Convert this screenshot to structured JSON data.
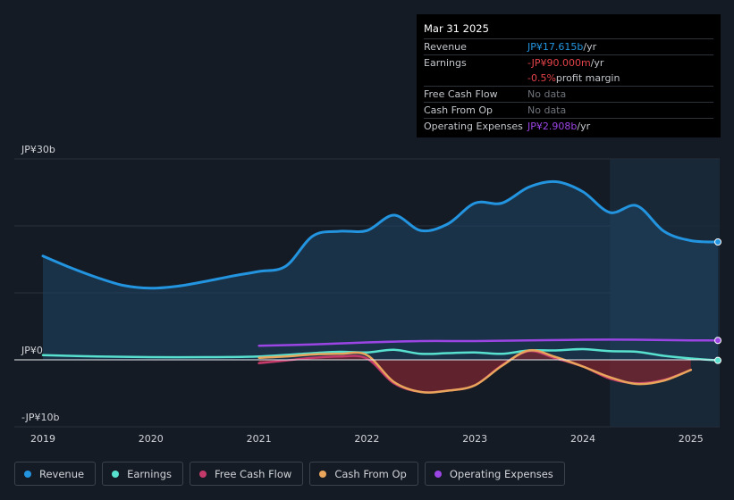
{
  "colors": {
    "revenue": "#2394df",
    "earnings": "#58e1ce",
    "free_cash_flow": "#c43b6b",
    "cash_from_op": "#e8a55b",
    "operating_expenses": "#9b45e5",
    "negative": "#e5434a"
  },
  "tooltip": {
    "date": "Mar 31 2025",
    "rows": [
      {
        "label": "Revenue",
        "value": "JP¥17.615b",
        "unit": " /yr"
      },
      {
        "label": "Earnings",
        "value": "-JP¥90.000m",
        "unit": " /yr"
      },
      {
        "label": "",
        "value": "-0.5%",
        "unit": " profit margin"
      },
      {
        "label": "Free Cash Flow",
        "value": "No data",
        "unit": ""
      },
      {
        "label": "Cash From Op",
        "value": "No data",
        "unit": ""
      },
      {
        "label": "Operating Expenses",
        "value": "JP¥2.908b",
        "unit": " /yr"
      }
    ]
  },
  "legend": [
    {
      "label": "Revenue",
      "color": "#2394df"
    },
    {
      "label": "Earnings",
      "color": "#58e1ce"
    },
    {
      "label": "Free Cash Flow",
      "color": "#c43b6b"
    },
    {
      "label": "Cash From Op",
      "color": "#e8a55b"
    },
    {
      "label": "Operating Expenses",
      "color": "#9b45e5"
    }
  ],
  "chart_data": {
    "type": "line",
    "title": "",
    "xlabel": "",
    "ylabel": "",
    "ylim": [
      -10,
      30
    ],
    "xlim": [
      2019.0,
      2025.25
    ],
    "y_tick_labels": [
      {
        "value": 30,
        "label": "JP¥30b"
      },
      {
        "value": 0,
        "label": "JP¥0"
      },
      {
        "value": -10,
        "label": "-JP¥10b"
      }
    ],
    "gridlines": [
      30,
      20,
      10,
      0,
      -10
    ],
    "x_tick_labels": [
      "2019",
      "2020",
      "2021",
      "2022",
      "2023",
      "2024",
      "2025"
    ],
    "x_tick_values": [
      2019,
      2020,
      2021,
      2022,
      2023,
      2024,
      2025
    ],
    "forecast_start": 2024.25,
    "series": [
      {
        "name": "Revenue",
        "color": "#2394df",
        "fill": true,
        "x": [
          2019.0,
          2019.25,
          2019.5,
          2019.75,
          2020.0,
          2020.25,
          2020.5,
          2020.75,
          2021.0,
          2021.25,
          2021.5,
          2021.75,
          2022.0,
          2022.25,
          2022.5,
          2022.75,
          2023.0,
          2023.25,
          2023.5,
          2023.75,
          2024.0,
          2024.25,
          2024.5,
          2024.75,
          2025.0,
          2025.25
        ],
        "values": [
          15.5,
          13.8,
          12.3,
          11.1,
          10.7,
          11.0,
          11.7,
          12.5,
          13.2,
          14.0,
          18.5,
          19.2,
          19.3,
          21.6,
          19.3,
          20.3,
          23.4,
          23.4,
          25.8,
          26.6,
          25.1,
          22.0,
          23.0,
          19.2,
          17.8,
          17.6
        ]
      },
      {
        "name": "Earnings",
        "color": "#58e1ce",
        "fill": false,
        "x": [
          2019.0,
          2019.5,
          2020.0,
          2020.5,
          2021.0,
          2021.5,
          2021.75,
          2022.0,
          2022.25,
          2022.5,
          2022.75,
          2023.0,
          2023.25,
          2023.5,
          2023.75,
          2024.0,
          2024.25,
          2024.5,
          2024.75,
          2025.0,
          2025.25
        ],
        "values": [
          0.7,
          0.5,
          0.4,
          0.4,
          0.5,
          1.0,
          1.2,
          1.1,
          1.5,
          0.9,
          1.0,
          1.1,
          0.9,
          1.4,
          1.4,
          1.6,
          1.3,
          1.2,
          0.6,
          0.2,
          -0.09
        ]
      },
      {
        "name": "Free Cash Flow",
        "color": "#c43b6b",
        "fill": true,
        "x": [
          2021.0,
          2021.25,
          2021.5,
          2021.75,
          2022.0,
          2022.25,
          2022.5,
          2022.75,
          2023.0,
          2023.25,
          2023.5,
          2023.75,
          2024.0,
          2024.25,
          2024.5,
          2024.75,
          2025.0
        ],
        "values": [
          -0.5,
          -0.1,
          0.3,
          0.5,
          0.2,
          -3.5,
          -4.8,
          -4.6,
          -3.8,
          -0.8,
          1.3,
          0.2,
          -1.0,
          -2.8,
          -3.5,
          -3.0,
          -1.5
        ]
      },
      {
        "name": "Cash From Op",
        "color": "#e8a55b",
        "fill": false,
        "x": [
          2021.0,
          2021.25,
          2021.5,
          2021.75,
          2022.0,
          2022.25,
          2022.5,
          2022.75,
          2023.0,
          2023.25,
          2023.5,
          2023.75,
          2024.0,
          2024.25,
          2024.5,
          2024.75,
          2025.0
        ],
        "values": [
          0.3,
          0.5,
          0.8,
          0.9,
          0.7,
          -3.3,
          -4.8,
          -4.6,
          -3.8,
          -0.9,
          1.4,
          0.4,
          -1.0,
          -2.6,
          -3.6,
          -3.1,
          -1.5
        ]
      },
      {
        "name": "Operating Expenses",
        "color": "#9b45e5",
        "fill": false,
        "x": [
          2021.0,
          2021.5,
          2022.0,
          2022.5,
          2023.0,
          2023.5,
          2024.0,
          2024.5,
          2025.0,
          2025.25
        ],
        "values": [
          2.1,
          2.3,
          2.6,
          2.8,
          2.8,
          2.9,
          3.0,
          3.0,
          2.9,
          2.9
        ]
      }
    ],
    "end_markers": [
      "Revenue",
      "Earnings",
      "Operating Expenses"
    ]
  }
}
